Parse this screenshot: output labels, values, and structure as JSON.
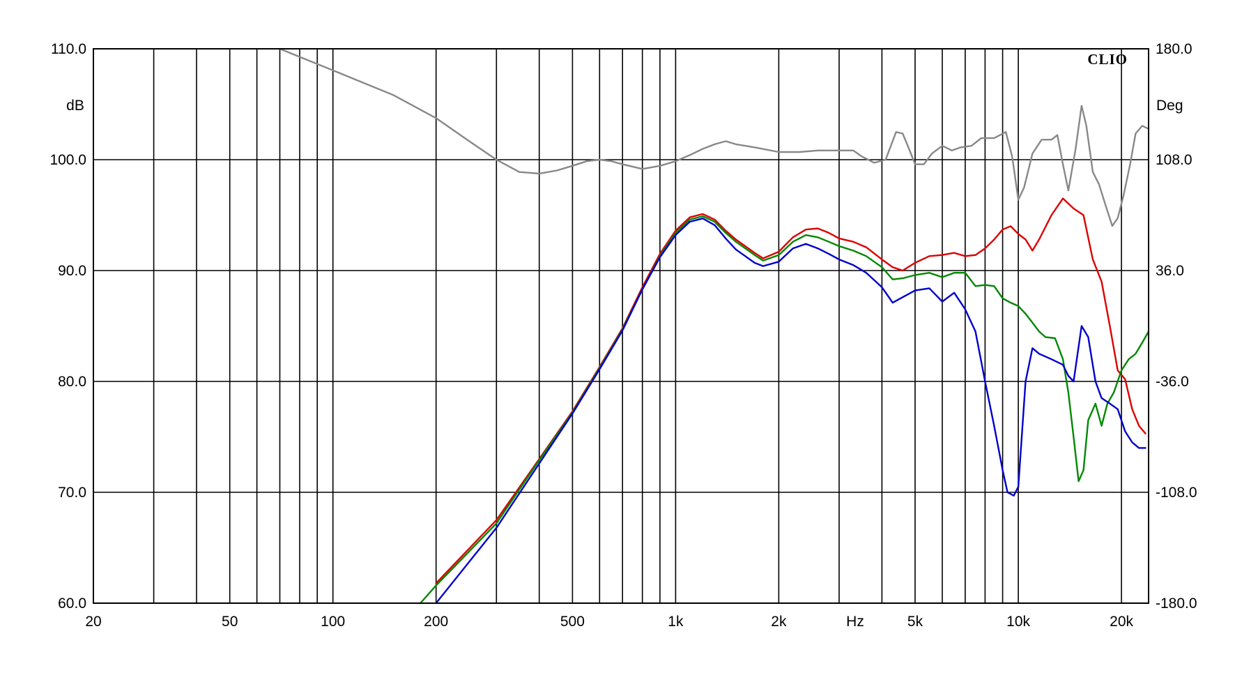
{
  "chart_data": {
    "type": "line",
    "brand": "CLIO",
    "x_axis": {
      "scale": "log",
      "range": [
        20,
        24000
      ],
      "unit_label": "Hz",
      "gridlines": [
        20,
        30,
        40,
        50,
        60,
        70,
        80,
        90,
        100,
        200,
        300,
        400,
        500,
        600,
        700,
        800,
        900,
        1000,
        2000,
        3000,
        4000,
        5000,
        6000,
        7000,
        8000,
        9000,
        10000,
        20000
      ],
      "ticks": [
        {
          "value": 20,
          "label": "20"
        },
        {
          "value": 50,
          "label": "50"
        },
        {
          "value": 100,
          "label": "100"
        },
        {
          "value": 200,
          "label": "200"
        },
        {
          "value": 500,
          "label": "500"
        },
        {
          "value": 1000,
          "label": "1k"
        },
        {
          "value": 2000,
          "label": "2k"
        },
        {
          "value": 5000,
          "label": "5k"
        },
        {
          "value": 10000,
          "label": "10k"
        },
        {
          "value": 20000,
          "label": "20k"
        }
      ]
    },
    "y_left": {
      "range": [
        60,
        110
      ],
      "unit_label": "dB",
      "ticks": [
        {
          "value": 110,
          "label": "110.0"
        },
        {
          "value": 100,
          "label": "100.0"
        },
        {
          "value": 90,
          "label": "90.0"
        },
        {
          "value": 80,
          "label": "80.0"
        },
        {
          "value": 70,
          "label": "70.0"
        },
        {
          "value": 60,
          "label": "60.0"
        }
      ]
    },
    "y_right": {
      "range": [
        -180,
        180
      ],
      "unit_label": "Deg",
      "ticks": [
        {
          "value": 180,
          "label": "180.0"
        },
        {
          "value": 108,
          "label": "108.0"
        },
        {
          "value": 36,
          "label": "36.0"
        },
        {
          "value": -36,
          "label": "-36.0"
        },
        {
          "value": -108,
          "label": "-108.0"
        },
        {
          "value": -180,
          "label": "-180.0"
        }
      ]
    },
    "series": [
      {
        "color": "#888888",
        "axis": "right",
        "points": [
          [
            70,
            180
          ],
          [
            100,
            166
          ],
          [
            150,
            150
          ],
          [
            200,
            135
          ],
          [
            250,
            120
          ],
          [
            300,
            108
          ],
          [
            350,
            100
          ],
          [
            400,
            99
          ],
          [
            450,
            101
          ],
          [
            500,
            104
          ],
          [
            550,
            107
          ],
          [
            600,
            108
          ],
          [
            650,
            107
          ],
          [
            700,
            105
          ],
          [
            800,
            102
          ],
          [
            900,
            104
          ],
          [
            1000,
            107
          ],
          [
            1100,
            111
          ],
          [
            1200,
            115
          ],
          [
            1300,
            118
          ],
          [
            1400,
            120
          ],
          [
            1500,
            118
          ],
          [
            1700,
            116
          ],
          [
            2000,
            113
          ],
          [
            2300,
            113
          ],
          [
            2600,
            114
          ],
          [
            3000,
            114
          ],
          [
            3300,
            114
          ],
          [
            3500,
            110
          ],
          [
            3800,
            106
          ],
          [
            4100,
            108
          ],
          [
            4400,
            126
          ],
          [
            4600,
            125
          ],
          [
            4800,
            115
          ],
          [
            5000,
            105
          ],
          [
            5300,
            105
          ],
          [
            5600,
            112
          ],
          [
            6000,
            117
          ],
          [
            6400,
            114
          ],
          [
            6800,
            116
          ],
          [
            7300,
            117
          ],
          [
            7800,
            122
          ],
          [
            8500,
            122
          ],
          [
            9200,
            126
          ],
          [
            9600,
            110
          ],
          [
            10000,
            82
          ],
          [
            10400,
            90
          ],
          [
            11000,
            112
          ],
          [
            11700,
            121
          ],
          [
            12500,
            121
          ],
          [
            13000,
            124
          ],
          [
            13500,
            105
          ],
          [
            14000,
            88
          ],
          [
            14700,
            115
          ],
          [
            15300,
            143
          ],
          [
            15800,
            130
          ],
          [
            16500,
            100
          ],
          [
            17200,
            92
          ],
          [
            18000,
            78
          ],
          [
            18800,
            65
          ],
          [
            19500,
            70
          ],
          [
            20300,
            85
          ],
          [
            21200,
            105
          ],
          [
            22000,
            125
          ],
          [
            23000,
            130
          ],
          [
            24000,
            128
          ]
        ]
      },
      {
        "color": "#dd0000",
        "axis": "left",
        "points": [
          [
            200,
            61.8
          ],
          [
            300,
            67.5
          ],
          [
            400,
            73.0
          ],
          [
            500,
            77.3
          ],
          [
            600,
            81.3
          ],
          [
            700,
            84.8
          ],
          [
            800,
            88.5
          ],
          [
            900,
            91.5
          ],
          [
            1000,
            93.6
          ],
          [
            1100,
            94.8
          ],
          [
            1200,
            95.1
          ],
          [
            1300,
            94.6
          ],
          [
            1400,
            93.6
          ],
          [
            1500,
            92.8
          ],
          [
            1700,
            91.6
          ],
          [
            1800,
            91.1
          ],
          [
            2000,
            91.7
          ],
          [
            2200,
            93.0
          ],
          [
            2400,
            93.7
          ],
          [
            2600,
            93.8
          ],
          [
            2800,
            93.4
          ],
          [
            3000,
            92.9
          ],
          [
            3300,
            92.6
          ],
          [
            3600,
            92.1
          ],
          [
            4000,
            91.0
          ],
          [
            4300,
            90.3
          ],
          [
            4600,
            90.0
          ],
          [
            5000,
            90.7
          ],
          [
            5500,
            91.3
          ],
          [
            6000,
            91.4
          ],
          [
            6500,
            91.6
          ],
          [
            7000,
            91.3
          ],
          [
            7500,
            91.4
          ],
          [
            8000,
            92.0
          ],
          [
            8500,
            92.8
          ],
          [
            9000,
            93.7
          ],
          [
            9500,
            94.0
          ],
          [
            10000,
            93.3
          ],
          [
            10500,
            92.8
          ],
          [
            11000,
            91.8
          ],
          [
            11500,
            92.8
          ],
          [
            12500,
            95.0
          ],
          [
            13500,
            96.5
          ],
          [
            14500,
            95.6
          ],
          [
            15500,
            95.0
          ],
          [
            16500,
            91.0
          ],
          [
            17500,
            89.0
          ],
          [
            18500,
            85.0
          ],
          [
            19500,
            81.0
          ],
          [
            20500,
            80.2
          ],
          [
            21500,
            77.5
          ],
          [
            22500,
            76.0
          ],
          [
            23500,
            75.3
          ]
        ]
      },
      {
        "color": "#008800",
        "axis": "left",
        "points": [
          [
            180,
            60.0
          ],
          [
            200,
            61.6
          ],
          [
            300,
            67.2
          ],
          [
            400,
            72.9
          ],
          [
            500,
            77.2
          ],
          [
            600,
            81.2
          ],
          [
            700,
            84.7
          ],
          [
            800,
            88.3
          ],
          [
            900,
            91.3
          ],
          [
            1000,
            93.4
          ],
          [
            1100,
            94.6
          ],
          [
            1200,
            94.9
          ],
          [
            1300,
            94.4
          ],
          [
            1400,
            93.4
          ],
          [
            1500,
            92.6
          ],
          [
            1700,
            91.4
          ],
          [
            1800,
            90.9
          ],
          [
            2000,
            91.4
          ],
          [
            2200,
            92.6
          ],
          [
            2400,
            93.2
          ],
          [
            2600,
            93.0
          ],
          [
            2800,
            92.6
          ],
          [
            3000,
            92.2
          ],
          [
            3300,
            91.8
          ],
          [
            3600,
            91.3
          ],
          [
            4000,
            90.3
          ],
          [
            4300,
            89.2
          ],
          [
            4600,
            89.3
          ],
          [
            5000,
            89.6
          ],
          [
            5500,
            89.8
          ],
          [
            6000,
            89.4
          ],
          [
            6500,
            89.8
          ],
          [
            7000,
            89.8
          ],
          [
            7500,
            88.6
          ],
          [
            8000,
            88.7
          ],
          [
            8500,
            88.6
          ],
          [
            9000,
            87.5
          ],
          [
            9500,
            87.1
          ],
          [
            10000,
            86.8
          ],
          [
            10500,
            86.1
          ],
          [
            11000,
            85.3
          ],
          [
            11500,
            84.5
          ],
          [
            12000,
            84.0
          ],
          [
            12800,
            83.9
          ],
          [
            13500,
            82.0
          ],
          [
            14000,
            79.0
          ],
          [
            14500,
            75.0
          ],
          [
            15000,
            71.0
          ],
          [
            15500,
            72.0
          ],
          [
            16000,
            76.5
          ],
          [
            16800,
            78.0
          ],
          [
            17500,
            76.0
          ],
          [
            18200,
            78.0
          ],
          [
            19000,
            79.0
          ],
          [
            20000,
            81.0
          ],
          [
            21000,
            82.0
          ],
          [
            22000,
            82.5
          ],
          [
            23000,
            83.5
          ],
          [
            24000,
            84.5
          ]
        ]
      },
      {
        "color": "#0000cc",
        "axis": "left",
        "points": [
          [
            200,
            60.0
          ],
          [
            300,
            66.8
          ],
          [
            400,
            72.6
          ],
          [
            500,
            77.1
          ],
          [
            600,
            81.1
          ],
          [
            700,
            84.6
          ],
          [
            800,
            88.3
          ],
          [
            900,
            91.2
          ],
          [
            1000,
            93.2
          ],
          [
            1100,
            94.4
          ],
          [
            1200,
            94.7
          ],
          [
            1300,
            94.1
          ],
          [
            1400,
            92.9
          ],
          [
            1500,
            91.9
          ],
          [
            1700,
            90.7
          ],
          [
            1800,
            90.4
          ],
          [
            2000,
            90.8
          ],
          [
            2200,
            92.0
          ],
          [
            2400,
            92.4
          ],
          [
            2600,
            92.0
          ],
          [
            2800,
            91.5
          ],
          [
            3000,
            91.0
          ],
          [
            3300,
            90.5
          ],
          [
            3600,
            89.8
          ],
          [
            4000,
            88.5
          ],
          [
            4300,
            87.1
          ],
          [
            4600,
            87.6
          ],
          [
            5000,
            88.2
          ],
          [
            5500,
            88.4
          ],
          [
            6000,
            87.2
          ],
          [
            6500,
            88.0
          ],
          [
            7000,
            86.5
          ],
          [
            7500,
            84.5
          ],
          [
            8000,
            80.0
          ],
          [
            8500,
            76.0
          ],
          [
            9000,
            72.0
          ],
          [
            9300,
            70.0
          ],
          [
            9700,
            69.7
          ],
          [
            10000,
            70.5
          ],
          [
            10500,
            80.0
          ],
          [
            11000,
            83.0
          ],
          [
            11500,
            82.5
          ],
          [
            12500,
            82.0
          ],
          [
            13500,
            81.5
          ],
          [
            14000,
            80.5
          ],
          [
            14500,
            80.0
          ],
          [
            15300,
            85.0
          ],
          [
            16000,
            84.0
          ],
          [
            16800,
            80.0
          ],
          [
            17500,
            78.5
          ],
          [
            18500,
            78.0
          ],
          [
            19500,
            77.5
          ],
          [
            20500,
            75.5
          ],
          [
            21500,
            74.5
          ],
          [
            22500,
            74.0
          ],
          [
            23500,
            74.0
          ]
        ]
      }
    ]
  }
}
